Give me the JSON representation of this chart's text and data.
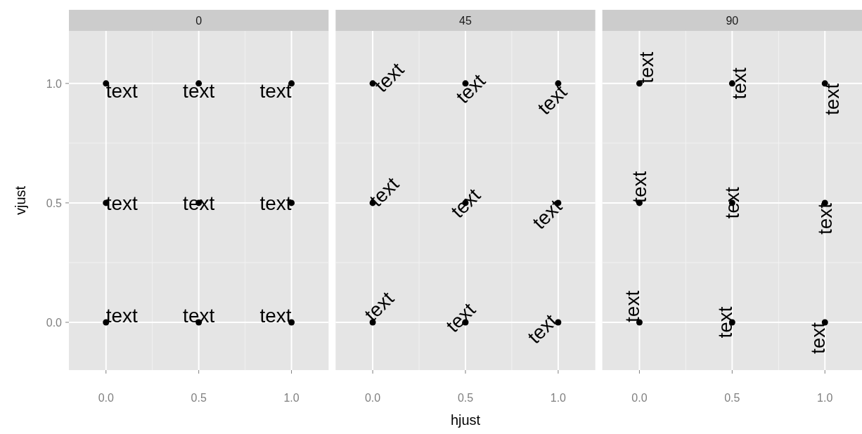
{
  "chart_data": [
    {
      "type": "scatter",
      "title": "0",
      "ylabel": "vjust",
      "x": [
        0,
        0.5,
        1,
        0,
        0.5,
        1,
        0,
        0.5,
        1
      ],
      "series": [
        {
          "color": "#000000",
          "values": [
            0,
            0,
            0,
            0.5,
            0.5,
            0.5,
            1,
            1,
            1
          ]
        }
      ],
      "xlim": [
        -0.2,
        1.2
      ],
      "ylim": [
        -0.2,
        1.22
      ],
      "xticks": [
        {
          "value": 0,
          "label": "0.0"
        },
        {
          "value": 0.5,
          "label": "0.5"
        },
        {
          "value": 1,
          "label": "1.0"
        }
      ],
      "yticks": [
        {
          "value": 0,
          "label": "0.0"
        },
        {
          "value": 0.5,
          "label": "0.5"
        },
        {
          "value": 1,
          "label": "1.0"
        }
      ],
      "grid": true,
      "marker": "circle",
      "annotations": [
        {
          "text": "text",
          "x": 0,
          "y": 0
        },
        {
          "text": "text",
          "x": 0.5,
          "y": 0
        },
        {
          "text": "text",
          "x": 1,
          "y": 0
        },
        {
          "text": "text",
          "x": 0,
          "y": 0.5
        },
        {
          "text": "text",
          "x": 0.5,
          "y": 0.5
        },
        {
          "text": "text",
          "x": 1,
          "y": 0.5
        },
        {
          "text": "text",
          "x": 0,
          "y": 1
        },
        {
          "text": "text",
          "x": 0.5,
          "y": 1
        },
        {
          "text": "text",
          "x": 1,
          "y": 1
        }
      ]
    },
    {
      "type": "scatter",
      "title": "45",
      "xlabel": "hjust",
      "x": [
        0,
        0.5,
        1,
        0,
        0.5,
        1,
        0,
        0.5,
        1
      ],
      "series": [
        {
          "color": "#000000",
          "values": [
            0,
            0,
            0,
            0.5,
            0.5,
            0.5,
            1,
            1,
            1
          ]
        }
      ],
      "xlim": [
        -0.2,
        1.2
      ],
      "ylim": [
        -0.2,
        1.22
      ],
      "xticks": [
        {
          "value": 0,
          "label": "0.0"
        },
        {
          "value": 0.5,
          "label": "0.5"
        },
        {
          "value": 1,
          "label": "1.0"
        }
      ],
      "yticks": [
        {
          "value": 0,
          "label": null
        },
        {
          "value": 0.5,
          "label": null
        },
        {
          "value": 1,
          "label": null
        }
      ],
      "grid": true,
      "marker": "circle",
      "tick_labels": "x",
      "annotations": [
        {
          "text": "text",
          "x": 0,
          "y": 0
        },
        {
          "text": "text",
          "x": 0.5,
          "y": 0
        },
        {
          "text": "text",
          "x": 1,
          "y": 0
        },
        {
          "text": "text",
          "x": 0,
          "y": 0.5
        },
        {
          "text": "text",
          "x": 0.5,
          "y": 0.5
        },
        {
          "text": "text",
          "x": 1,
          "y": 0.5
        },
        {
          "text": "text",
          "x": 0,
          "y": 1
        },
        {
          "text": "text",
          "x": 0.5,
          "y": 1
        },
        {
          "text": "text",
          "x": 1,
          "y": 1
        }
      ]
    },
    {
      "type": "scatter",
      "title": "90",
      "x": [
        0,
        0.5,
        1,
        0,
        0.5,
        1,
        0,
        0.5,
        1
      ],
      "series": [
        {
          "color": "#000000",
          "values": [
            0,
            0,
            0,
            0.5,
            0.5,
            0.5,
            1,
            1,
            1
          ]
        }
      ],
      "xlim": [
        -0.2,
        1.2
      ],
      "ylim": [
        -0.2,
        1.22
      ],
      "xticks": [
        {
          "value": 0,
          "label": "0.0"
        },
        {
          "value": 0.5,
          "label": "0.5"
        },
        {
          "value": 1,
          "label": "1.0"
        }
      ],
      "yticks": [
        {
          "value": 0,
          "label": null
        },
        {
          "value": 0.5,
          "label": null
        },
        {
          "value": 1,
          "label": null
        }
      ],
      "grid": true,
      "marker": "circle",
      "tick_labels": "x",
      "annotations": [
        {
          "text": "text",
          "x": 0,
          "y": 0
        },
        {
          "text": "text",
          "x": 0.5,
          "y": 0
        },
        {
          "text": "text",
          "x": 1,
          "y": 0
        },
        {
          "text": "text",
          "x": 0,
          "y": 0.5
        },
        {
          "text": "text",
          "x": 0.5,
          "y": 0.5
        },
        {
          "text": "text",
          "x": 1,
          "y": 0.5
        },
        {
          "text": "text",
          "x": 0,
          "y": 1
        },
        {
          "text": "text",
          "x": 0.5,
          "y": 1
        },
        {
          "text": "text",
          "x": 1,
          "y": 1
        }
      ]
    }
  ]
}
